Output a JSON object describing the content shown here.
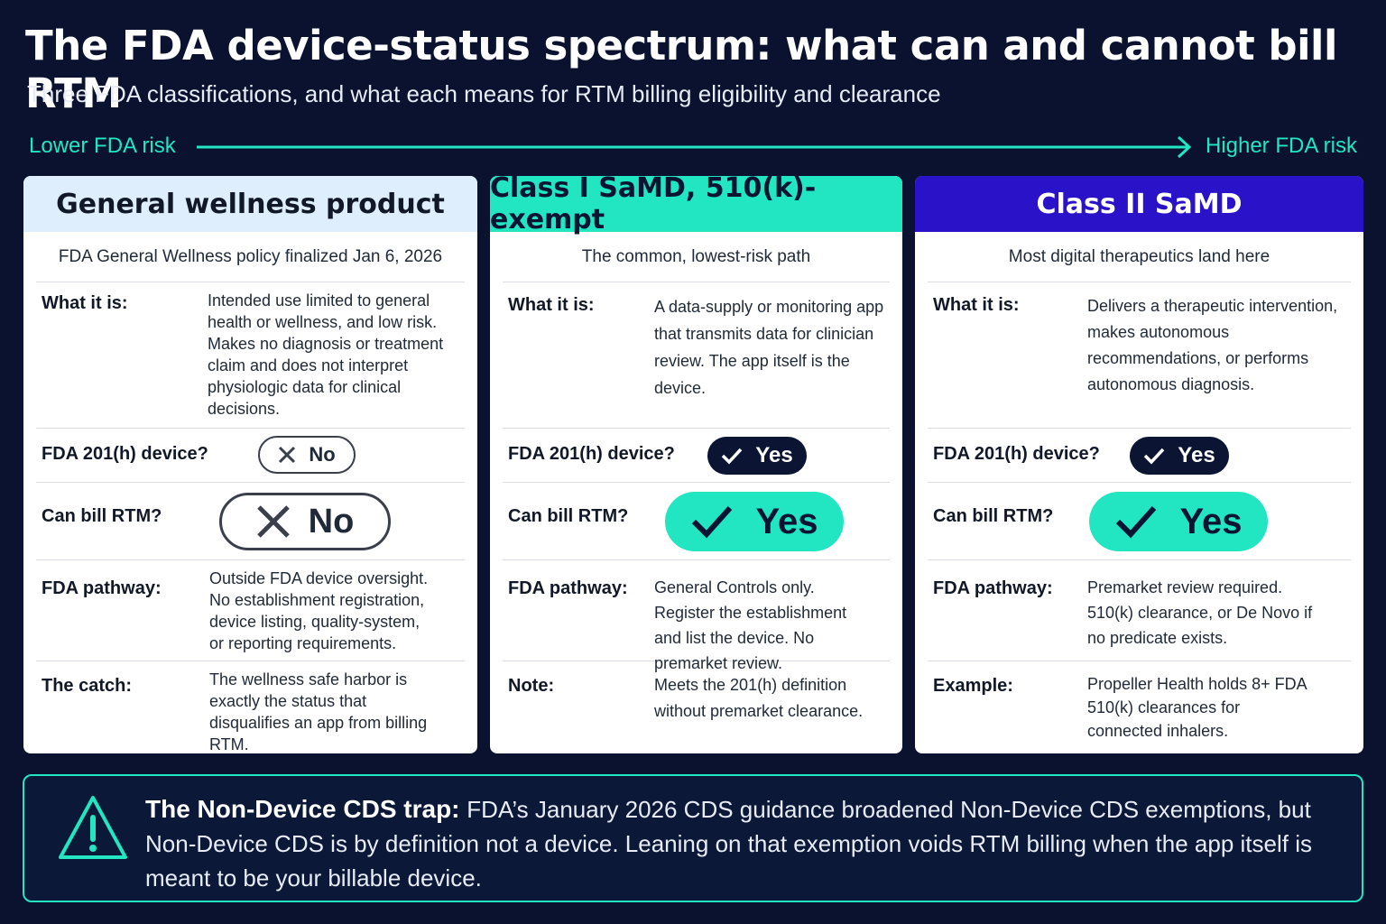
{
  "title": "The FDA device-status spectrum: what can and cannot bill RTM",
  "subtitle": "Three FDA classifications, and what each means for RTM billing eligibility and clearance",
  "risk": {
    "low": "Lower FDA risk",
    "high": "Higher FDA risk"
  },
  "colors": {
    "accent": "#21e6c1",
    "background": "#0a1230",
    "class2_header": "#2a12c9",
    "wellness_header": "#dfeefc"
  },
  "cards": [
    {
      "title": "General wellness product",
      "subtitle": "FDA General Wellness policy finalized Jan 6, 2026",
      "what_label": "What it is:",
      "what_value": "Intended use limited to general health or wellness, and low risk. Makes no diagnosis or treatment claim and does not interpret physiologic data for clinical decisions.",
      "device_label": "FDA 201(h) device?",
      "device_value": "No",
      "bill_label": "Can bill RTM?",
      "bill_value": "No",
      "pathway_label": "FDA pathway:",
      "pathway_value": "Outside FDA device oversight. No establishment registration, device listing, quality-system, or reporting requirements.",
      "extra_label": "The catch:",
      "extra_value": "The wellness safe harbor is exactly the status that disqualifies an app from billing RTM."
    },
    {
      "title": "Class I SaMD, 510(k)-exempt",
      "subtitle": "The common, lowest-risk path",
      "what_label": "What it is:",
      "what_value": "A data-supply or monitoring app that transmits data for clinician review. The app itself is the device.",
      "device_label": "FDA 201(h) device?",
      "device_value": "Yes",
      "bill_label": "Can bill RTM?",
      "bill_value": "Yes",
      "pathway_label": "FDA pathway:",
      "pathway_value": "General Controls only. Register the establishment and list the device. No premarket review.",
      "extra_label": "Note:",
      "extra_value": "Meets the 201(h) definition without premarket clearance."
    },
    {
      "title": "Class II SaMD",
      "subtitle": "Most digital therapeutics land here",
      "what_label": "What it is:",
      "what_value": "Delivers a therapeutic intervention, makes autonomous recommendations, or performs autonomous diagnosis.",
      "device_label": "FDA 201(h) device?",
      "device_value": "Yes",
      "bill_label": "Can bill RTM?",
      "bill_value": "Yes",
      "pathway_label": "FDA pathway:",
      "pathway_value": "Premarket review required. 510(k) clearance, or De Novo if no predicate exists.",
      "extra_label": "Example:",
      "extra_value": "Propeller Health holds 8+ FDA 510(k) clearances for connected inhalers."
    }
  ],
  "trap": {
    "title": "The Non-Device CDS trap:",
    "body": "FDA’s January 2026 CDS guidance broadened Non-Device CDS exemptions, but Non-Device CDS is by definition not a device. Leaning on that exemption voids RTM billing when the app itself is meant to be your billable device."
  }
}
